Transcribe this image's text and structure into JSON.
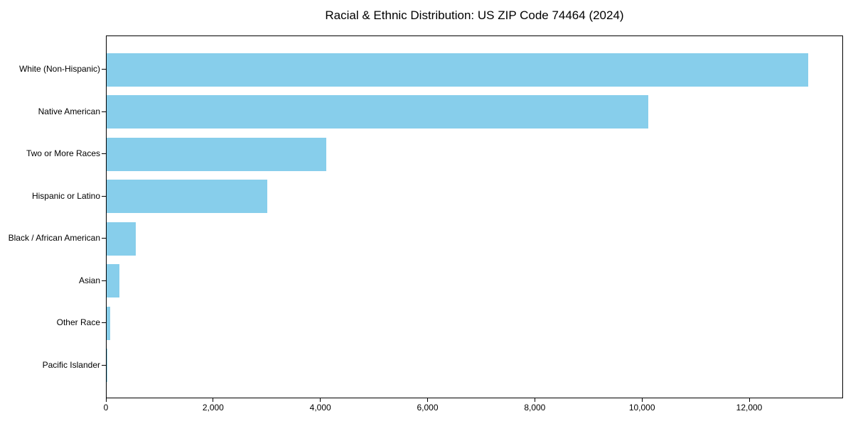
{
  "title": "Racial & Ethnic Distribution: US ZIP Code 74464 (2024)",
  "chart_data": {
    "type": "bar",
    "orientation": "horizontal",
    "title": "Racial & Ethnic Distribution: US ZIP Code 74464 (2024)",
    "categories": [
      "White (Non-Hispanic)",
      "Native American",
      "Two or More Races",
      "Hispanic or Latino",
      "Black / African American",
      "Asian",
      "Other Race",
      "Pacific Islander"
    ],
    "values": [
      13090,
      10100,
      4100,
      2990,
      540,
      240,
      65,
      10
    ],
    "xlabel": "",
    "ylabel": "",
    "xlim": [
      0,
      13750
    ],
    "x_ticks": [
      0,
      2000,
      4000,
      6000,
      8000,
      10000,
      12000
    ],
    "x_tick_labels": [
      "0",
      "2,000",
      "4,000",
      "6,000",
      "8,000",
      "10,000",
      "12,000"
    ],
    "bar_color": "#87CEEB",
    "axis_color": "#000000",
    "text_color": "#000000",
    "background_color": "#FFFFFF",
    "grid": false,
    "legend": null
  }
}
